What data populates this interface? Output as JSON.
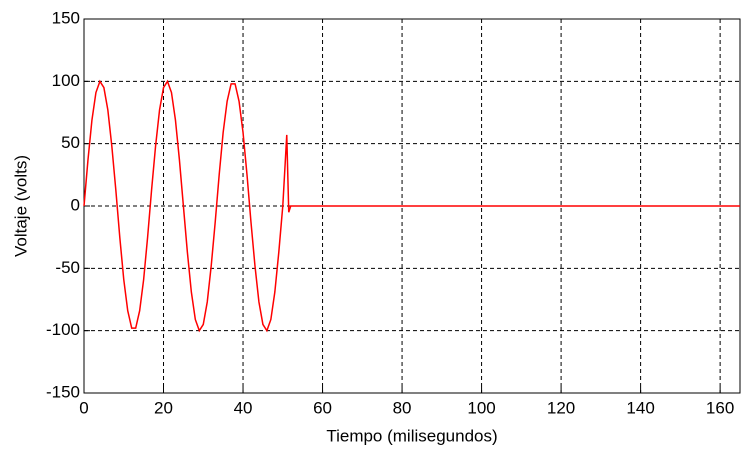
{
  "chart_data": {
    "type": "line",
    "xlabel": "Tiempo (milisegundos)",
    "ylabel": "Voltaje (volts)",
    "x": [
      0,
      1,
      2,
      3,
      4,
      5,
      6,
      7,
      8,
      9,
      10,
      11,
      12,
      13,
      14,
      15,
      16,
      17,
      18,
      19,
      20,
      21,
      22,
      23,
      24,
      25,
      26,
      27,
      28,
      29,
      30,
      31,
      32,
      33,
      34,
      35,
      36,
      37,
      38,
      39,
      40,
      41,
      42,
      43,
      44,
      45,
      46,
      47,
      48,
      49,
      50,
      51,
      51.5,
      52,
      165
    ],
    "values": [
      0,
      37,
      69,
      91,
      100,
      95,
      77,
      48,
      13,
      -25,
      -59,
      -84,
      -98,
      -98,
      -84,
      -59,
      -25,
      13,
      48,
      77,
      95,
      100,
      91,
      69,
      37,
      0,
      -37,
      -69,
      -91,
      -100,
      -95,
      -77,
      -48,
      -13,
      25,
      59,
      84,
      98,
      98,
      84,
      59,
      25,
      -13,
      -48,
      -77,
      -95,
      -100,
      -91,
      -69,
      -37,
      0,
      57,
      -5,
      0,
      0
    ],
    "color": "#ff0000",
    "xlim": [
      0,
      165
    ],
    "ylim": [
      -150,
      150
    ],
    "xticks": [
      0,
      20,
      40,
      60,
      80,
      100,
      120,
      140,
      160
    ],
    "yticks": [
      -150,
      -100,
      -50,
      0,
      50,
      100,
      150
    ],
    "grid": true
  }
}
